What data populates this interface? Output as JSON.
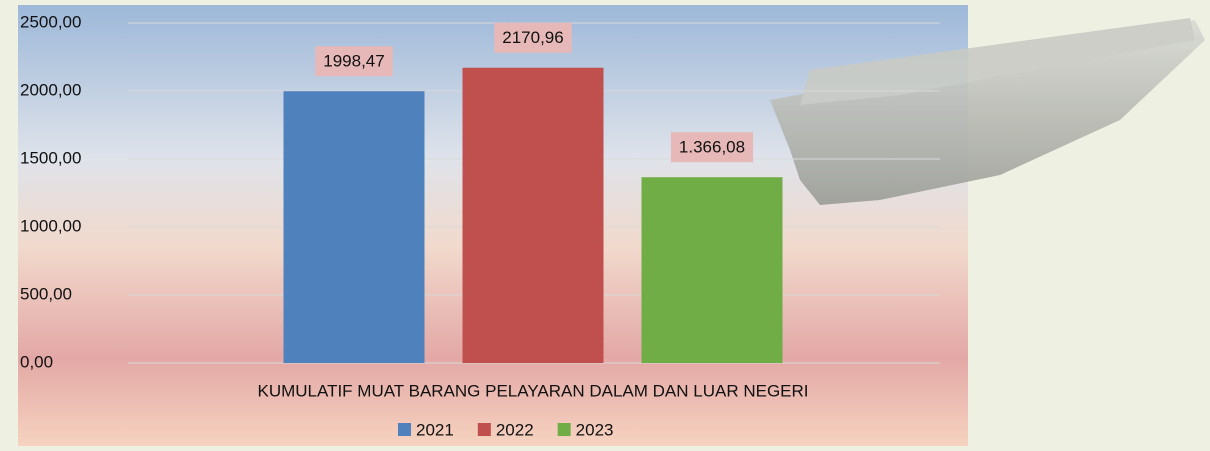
{
  "chart_data": {
    "type": "bar",
    "categories": [
      "KUMULATIF MUAT BARANG PELAYARAN DALAM DAN LUAR NEGERI"
    ],
    "series": [
      {
        "name": "2021",
        "color": "#4f81bd",
        "values": [
          1998.47
        ],
        "value_labels": [
          "1998,47"
        ]
      },
      {
        "name": "2022",
        "color": "#c0504d",
        "values": [
          2170.96
        ],
        "value_labels": [
          "2170,96"
        ]
      },
      {
        "name": "2023",
        "color": "#70ad47",
        "values": [
          1366.08
        ],
        "value_labels": [
          "1.366,08"
        ]
      }
    ],
    "ylim": [
      0,
      2500
    ],
    "yticks": [
      {
        "value": 0,
        "label": "0,00"
      },
      {
        "value": 500,
        "label": "500,00"
      },
      {
        "value": 1000,
        "label": "1000,00"
      },
      {
        "value": 1500,
        "label": "1500,00"
      },
      {
        "value": 2000,
        "label": "2000,00"
      },
      {
        "value": 2500,
        "label": "2500,00"
      }
    ],
    "grid": true,
    "legend": "bottom"
  }
}
